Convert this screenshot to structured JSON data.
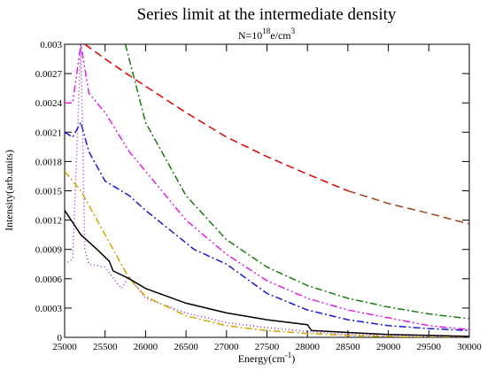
{
  "chart_data": {
    "type": "line",
    "title": "Series limit at the intermediate density",
    "subtitle": {
      "base": "N=10",
      "exp": "18",
      "unit": "e/cm",
      "unit_exp": "3"
    },
    "xlabel": {
      "base": "Energy(cm",
      "exp": "-1",
      "close": ")"
    },
    "ylabel": "Intensity(arb.units)",
    "xlim": [
      25000,
      30000
    ],
    "xticks": [
      25000,
      25500,
      26000,
      26500,
      27000,
      27500,
      28000,
      28500,
      29000,
      29500,
      30000
    ],
    "ylim": [
      0,
      0.003
    ],
    "yticks": [
      0,
      0.0003,
      0.0006,
      0.0009,
      0.0012,
      0.0015,
      0.0018,
      0.0021,
      0.0024,
      0.0027,
      0.003
    ],
    "series": [
      {
        "color": "#e00000",
        "dash": "9,5",
        "x": [
          25250,
          25500,
          25800,
          26000,
          26500,
          27000,
          27500,
          28000,
          28500
        ],
        "values": [
          0.003,
          0.00285,
          0.00268,
          0.00257,
          0.0023,
          0.00205,
          0.00185,
          0.00167,
          0.0015
        ]
      },
      {
        "color": "#a0421c",
        "dash": "9,5",
        "x": [
          28500,
          29000,
          29500,
          30000
        ],
        "values": [
          0.0015,
          0.00137,
          0.00127,
          0.00116
        ]
      },
      {
        "color": "#1a7a10",
        "dash": "8,3,2,3",
        "x": [
          25750,
          26000,
          26500,
          27000,
          27500,
          28000,
          28500,
          29000,
          29500,
          30000
        ],
        "values": [
          0.003,
          0.0022,
          0.00145,
          0.001,
          0.00072,
          0.00053,
          0.0004,
          0.00031,
          0.00024,
          0.00019
        ]
      },
      {
        "color": "#e020e0",
        "dash": "8,3,2,3,2,3",
        "x": [
          25000,
          25100,
          25200,
          25300,
          25500,
          25800,
          26000,
          26500,
          27000,
          27500,
          28000,
          28500,
          29000,
          29500,
          30000
        ],
        "values": [
          0.0024,
          0.0024,
          0.003,
          0.0025,
          0.0023,
          0.0019,
          0.0017,
          0.0012,
          0.00085,
          0.00058,
          0.0004,
          0.00028,
          0.0002,
          0.00012,
          8e-05
        ]
      },
      {
        "color": "#1a1acc",
        "dash": "8,3,2,3",
        "x": [
          25000,
          25100,
          25200,
          25300,
          25500,
          25800,
          26000,
          26300,
          26600,
          27000,
          27500,
          28000,
          28500,
          29000,
          29500,
          30000
        ],
        "values": [
          0.0021,
          0.00205,
          0.0022,
          0.0019,
          0.0016,
          0.00145,
          0.0013,
          0.0011,
          0.0009,
          0.00075,
          0.00045,
          0.00028,
          0.00018,
          0.00012,
          9e-05,
          7e-05
        ]
      },
      {
        "color": "#8a2be2",
        "dash": "1,3",
        "x": [
          25000,
          25100,
          25200,
          25250,
          25300,
          25500,
          25700,
          25800,
          26000,
          26500,
          27000,
          27500,
          28000,
          28500,
          29000,
          29500,
          30000
        ],
        "values": [
          0.00075,
          0.0008,
          0.003,
          0.0009,
          0.00075,
          0.00072,
          0.0005,
          0.00062,
          0.0004,
          0.00025,
          0.00015,
          0.0001,
          6e-05,
          3e-05,
          2e-05,
          1e-05,
          0
        ]
      },
      {
        "color": "#d4a600",
        "dash": "8,3,2,3",
        "x": [
          25000,
          25200,
          25400,
          25600,
          25800,
          26000,
          26500,
          27000,
          27500,
          28000,
          28500,
          29000,
          29500,
          30000
        ],
        "values": [
          0.0017,
          0.0015,
          0.0012,
          0.0009,
          0.0006,
          0.00042,
          0.00022,
          0.00012,
          7e-05,
          4e-05,
          2e-05,
          1e-05,
          0,
          0
        ]
      },
      {
        "color": "#000000",
        "dash": "none",
        "x": [
          25000,
          25200,
          25400,
          25550,
          25600,
          25800,
          26000,
          26500,
          27000,
          27500,
          28000,
          28050,
          28500,
          29000,
          29500,
          30000
        ],
        "values": [
          0.0013,
          0.00105,
          0.0009,
          0.00078,
          0.00068,
          0.0006,
          0.0005,
          0.00035,
          0.00025,
          0.00018,
          0.00013,
          7e-05,
          5e-05,
          3e-05,
          2e-05,
          1e-05
        ]
      }
    ]
  }
}
